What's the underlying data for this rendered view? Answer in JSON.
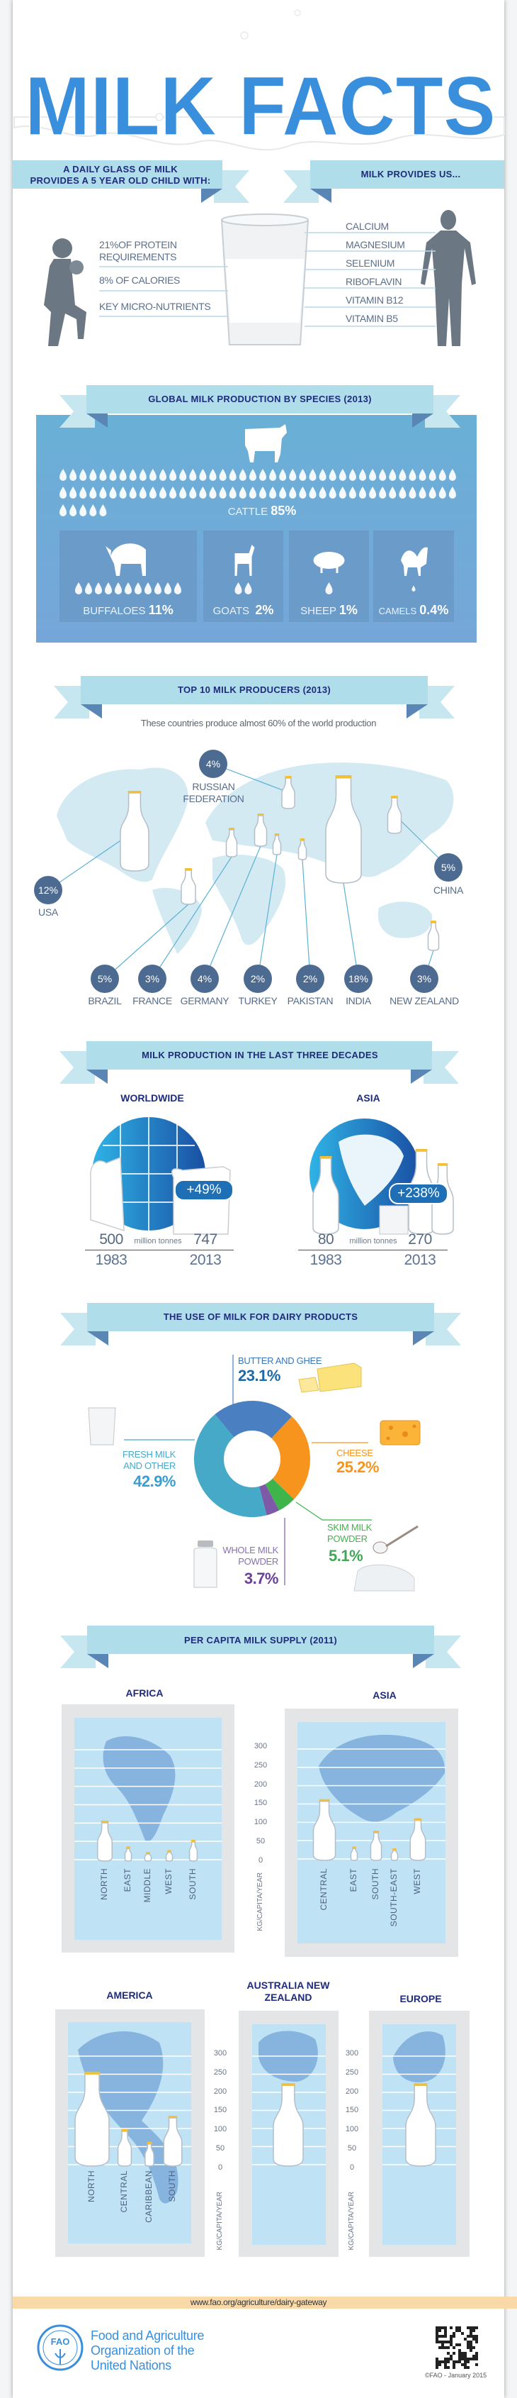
{
  "title": "MILK FACTS",
  "nutrition": {
    "child_heading": [
      "A DAILY GLASS OF MILK",
      "PROVIDES A 5 YEAR OLD CHILD WITH:"
    ],
    "child_items": [
      "21%OF PROTEIN REQUIREMENTS",
      "8% OF CALORIES",
      "KEY MICRO-NUTRIENTS"
    ],
    "us_heading": "MILK PROVIDES US...",
    "us_items": [
      "CALCIUM",
      "MAGNESIUM",
      "SELENIUM",
      "RIBOFLAVIN",
      "VITAMIN B12",
      "VITAMIN B5"
    ]
  },
  "species": {
    "heading": "GLOBAL MILK PRODUCTION BY SPECIES (2013)",
    "cattle": {
      "label": "CATTLE",
      "value": "85%",
      "drops": 85
    },
    "others": [
      {
        "label": "BUFFALOES",
        "value": "11%",
        "drops": 11
      },
      {
        "label": "GOATS",
        "value": "2%",
        "drops": 2
      },
      {
        "label": "SHEEP",
        "value": "1%",
        "drops": 1
      },
      {
        "label": "CAMELS",
        "value": "0.4%",
        "drops": 0.4
      }
    ]
  },
  "producers": {
    "heading": "TOP 10 MILK PRODUCERS (2013)",
    "subtitle": "These countries produce almost 60% of the world production",
    "countries": [
      {
        "name": "RUSSIAN FEDERATION",
        "share": "4%"
      },
      {
        "name": "USA",
        "share": "12%"
      },
      {
        "name": "CHINA",
        "share": "5%"
      },
      {
        "name": "BRAZIL",
        "share": "5%"
      },
      {
        "name": "FRANCE",
        "share": "3%"
      },
      {
        "name": "GERMANY",
        "share": "4%"
      },
      {
        "name": "TURKEY",
        "share": "2%"
      },
      {
        "name": "PAKISTAN",
        "share": "2%"
      },
      {
        "name": "INDIA",
        "share": "18%"
      },
      {
        "name": "NEW ZEALAND",
        "share": "3%"
      }
    ]
  },
  "production": {
    "heading": "MILK PRODUCTION IN THE LAST THREE DECADES",
    "regions": [
      {
        "name": "WORLDWIDE",
        "change": "+49%",
        "start_value": "500",
        "end_value": "747",
        "unit": "million tonnes",
        "start_year": "1983",
        "end_year": "2013"
      },
      {
        "name": "ASIA",
        "change": "+238%",
        "start_value": "80",
        "end_value": "270",
        "unit": "million tonnes",
        "start_year": "1983",
        "end_year": "2013"
      }
    ]
  },
  "dairy": {
    "heading": "THE USE OF MILK FOR DAIRY PRODUCTS",
    "segments": [
      {
        "label": "BUTTER AND GHEE",
        "value": "23.1%",
        "color": "#4a7fc1"
      },
      {
        "label": "CHEESE",
        "value": "25.2%",
        "color": "#f7941d"
      },
      {
        "label": "SKIM MILK POWDER",
        "value": "5.1%",
        "color": "#3fb44b"
      },
      {
        "label": "WHOLE MILK POWDER",
        "value": "3.7%",
        "color": "#7d5aa8"
      },
      {
        "label": "FRESH MILK AND OTHER",
        "value": "42.9%",
        "color": "#47a9c8"
      }
    ]
  },
  "per_capita": {
    "heading": "PER CAPITA MILK SUPPLY (2011)",
    "axis_label": "KG/CAPITA/YEAR",
    "ticks": [
      "300",
      "250",
      "200",
      "150",
      "100",
      "50",
      "0"
    ]
  },
  "chart_data": [
    {
      "type": "pie",
      "variant": "donut",
      "title": "THE USE OF MILK FOR DAIRY PRODUCTS",
      "categories": [
        "BUTTER AND GHEE",
        "CHEESE",
        "SKIM MILK POWDER",
        "WHOLE MILK POWDER",
        "FRESH MILK AND OTHER"
      ],
      "values": [
        23.1,
        25.2,
        5.1,
        3.7,
        42.9
      ],
      "colors": [
        "#4a7fc1",
        "#f7941d",
        "#3fb44b",
        "#7d5aa8",
        "#47a9c8"
      ]
    },
    {
      "type": "bar",
      "title": "AFRICA",
      "categories": [
        "NORTH",
        "EAST",
        "MIDDLE",
        "WEST",
        "SOUTH"
      ],
      "values": [
        110,
        40,
        25,
        30,
        58
      ],
      "ylabel": "KG/CAPITA/YEAR",
      "ylim": [
        0,
        300
      ]
    },
    {
      "type": "bar",
      "title": "ASIA",
      "categories": [
        "CENTRAL",
        "EAST",
        "SOUTH",
        "SOUTH-EAST",
        "WEST"
      ],
      "values": [
        167,
        38,
        81,
        33,
        115
      ],
      "ylabel": "KG/CAPITA/YEAR",
      "ylim": [
        0,
        300
      ]
    },
    {
      "type": "bar",
      "title": "AMERICA",
      "categories": [
        "NORTH",
        "CENTRAL",
        "CARIBBEAN",
        "SOUTH"
      ],
      "values": [
        261,
        102,
        67,
        139
      ],
      "ylabel": "KG/CAPITA/YEAR",
      "ylim": [
        0,
        300
      ]
    },
    {
      "type": "bar",
      "title": "AUSTRALIA NEW ZEALAND",
      "categories": [
        ""
      ],
      "values": [
        229
      ],
      "ylabel": "KG/CAPITA/YEAR",
      "ylim": [
        0,
        300
      ]
    },
    {
      "type": "bar",
      "title": "EUROPE",
      "categories": [
        ""
      ],
      "values": [
        229
      ],
      "ylabel": "KG/CAPITA/YEAR",
      "ylim": [
        0,
        300
      ]
    }
  ],
  "footer": {
    "url": "www.fao.org/agriculture/dairy-gateway",
    "org_lines": [
      "Food and Agriculture",
      "Organization of the",
      "United Nations"
    ],
    "logo_text": "FAO",
    "copyright": "©FAO - January 2015"
  },
  "colors": {
    "title_blue": "#3a8fdc",
    "heading_navy": "#1f2b7b",
    "ribbon": "#afdeea",
    "circle": "#4d6b91",
    "footer_band": "#f9d9a8"
  }
}
